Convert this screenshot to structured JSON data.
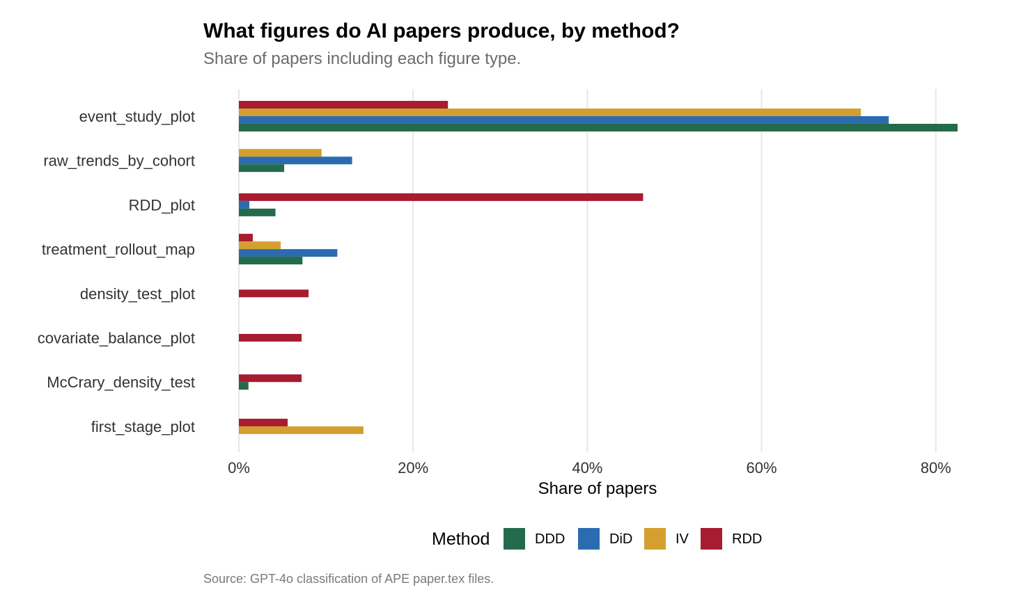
{
  "chart_data": {
    "type": "bar",
    "orientation": "horizontal",
    "title": "What figures do AI papers produce, by method?",
    "subtitle": "Share of papers including each figure type.",
    "xlabel": "Share of papers",
    "ylabel": "",
    "caption": "Source: GPT-4o classification of APE paper.tex files.",
    "xlim": [
      0,
      82.5
    ],
    "xticks": [
      0,
      20,
      40,
      60,
      80
    ],
    "xtick_labels": [
      "0%",
      "20%",
      "40%",
      "60%",
      "80%"
    ],
    "grid": "vertical major gridlines",
    "legend": {
      "title": "Method",
      "position": "bottom"
    },
    "categories": [
      "event_study_plot",
      "raw_trends_by_cohort",
      "RDD_plot",
      "treatment_rollout_map",
      "density_test_plot",
      "covariate_balance_plot",
      "McCrary_density_test",
      "first_stage_plot"
    ],
    "series": [
      {
        "name": "DDD",
        "color": "#246B4B",
        "values": [
          82.5,
          5.2,
          4.2,
          7.3,
          null,
          null,
          1.1,
          null
        ]
      },
      {
        "name": "DiD",
        "color": "#2B6CB0",
        "values": [
          74.6,
          13.0,
          1.2,
          11.3,
          null,
          null,
          null,
          null
        ]
      },
      {
        "name": "IV",
        "color": "#D59F30",
        "values": [
          71.4,
          9.5,
          null,
          4.8,
          null,
          null,
          null,
          14.3
        ]
      },
      {
        "name": "RDD",
        "color": "#A71C30",
        "values": [
          24.0,
          null,
          46.4,
          1.6,
          8.0,
          7.2,
          7.2,
          5.6
        ]
      }
    ]
  }
}
